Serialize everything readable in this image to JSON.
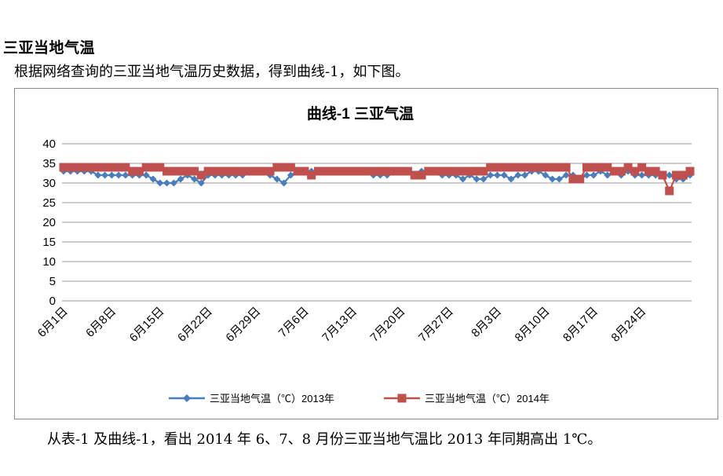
{
  "document": {
    "heading": "三亚当地气温",
    "intro": "根据网络查询的三亚当地气温历史数据，得到曲线-1，如下图。",
    "caption": "从表-1 及曲线-1，看出 2014 年 6、7、8 月份三亚当地气温比 2013 年同期高出 1℃。"
  },
  "chart_data": {
    "type": "line",
    "title": "曲线-1  三亚气温",
    "xlabel": "",
    "ylabel": "",
    "ylim": [
      0,
      40
    ],
    "yticks": [
      0,
      5,
      10,
      15,
      20,
      25,
      30,
      35,
      40
    ],
    "x_start": "6月1日",
    "x_count": 92,
    "x_tick_every": 7,
    "x_tick_labels": [
      "6月1日",
      "6月8日",
      "6月15日",
      "6月22日",
      "6月29日",
      "7月6日",
      "7月13日",
      "7月20日",
      "7月27日",
      "8月3日",
      "8月10日",
      "8月17日",
      "8月24日"
    ],
    "grid": "horizontal",
    "legend_position": "bottom",
    "series": [
      {
        "name": "三亚当地气温（℃）2013年",
        "color": "#4a7ebb",
        "marker": "diamond",
        "values": [
          33,
          33,
          33,
          33,
          33,
          32,
          32,
          32,
          32,
          32,
          32,
          32,
          32,
          31,
          30,
          30,
          30,
          31,
          32,
          31,
          30,
          32,
          32,
          32,
          32,
          32,
          32,
          33,
          33,
          33,
          32,
          31,
          30,
          32,
          33,
          33,
          33,
          33,
          33,
          33,
          33,
          33,
          33,
          33,
          33,
          32,
          32,
          32,
          33,
          33,
          33,
          32,
          33,
          33,
          33,
          32,
          32,
          32,
          31,
          32,
          31,
          31,
          32,
          32,
          32,
          31,
          32,
          32,
          33,
          33,
          32,
          31,
          31,
          32,
          32,
          31,
          32,
          32,
          33,
          32,
          33,
          32,
          33,
          32,
          32,
          32,
          32,
          32,
          32,
          31,
          31,
          32
        ]
      },
      {
        "name": "三亚当地气温（℃）2014年",
        "color": "#c0504d",
        "marker": "square",
        "values": [
          34,
          34,
          34,
          34,
          34,
          34,
          34,
          34,
          34,
          34,
          33,
          33,
          34,
          34,
          34,
          33,
          33,
          33,
          33,
          33,
          32,
          33,
          33,
          33,
          33,
          33,
          33,
          33,
          33,
          33,
          33,
          34,
          34,
          34,
          33,
          33,
          32,
          33,
          33,
          33,
          33,
          33,
          33,
          33,
          33,
          33,
          33,
          33,
          33,
          33,
          33,
          32,
          32,
          33,
          33,
          33,
          33,
          33,
          33,
          33,
          33,
          33,
          34,
          34,
          34,
          34,
          34,
          34,
          34,
          34,
          34,
          34,
          34,
          34,
          31,
          31,
          34,
          34,
          34,
          34,
          33,
          33,
          34,
          33,
          34,
          33,
          33,
          32,
          28,
          32,
          32,
          33
        ]
      }
    ]
  }
}
